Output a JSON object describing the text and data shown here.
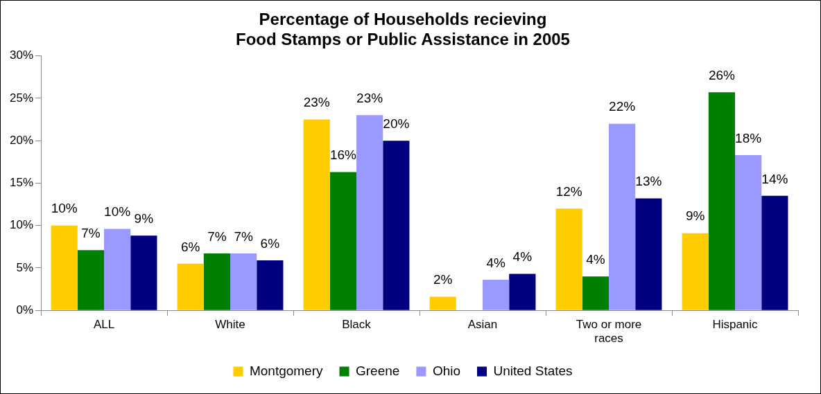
{
  "chart_data": {
    "type": "bar",
    "title": "Percentage of Households recieving\nFood Stamps or Public Assistance in 2005",
    "categories": [
      "ALL",
      "White",
      "Black",
      "Asian",
      "Two or more races",
      "Hispanic"
    ],
    "series": [
      {
        "name": "Montgomery",
        "color": "#ffcc00",
        "values": [
          10.0,
          5.5,
          22.5,
          1.6,
          12.0,
          9.1
        ],
        "value_labels": [
          "10%",
          "6%",
          "23%",
          "2%",
          "12%",
          "9%"
        ]
      },
      {
        "name": "Greene",
        "color": "#008000",
        "values": [
          7.1,
          6.7,
          16.3,
          null,
          4.0,
          25.7
        ],
        "value_labels": [
          "7%",
          "7%",
          "16%",
          null,
          "4%",
          "26%"
        ]
      },
      {
        "name": "Ohio",
        "color": "#9999ff",
        "values": [
          9.6,
          6.7,
          23.0,
          3.6,
          22.0,
          18.3
        ],
        "value_labels": [
          "10%",
          "7%",
          "23%",
          "4%",
          "22%",
          "18%"
        ]
      },
      {
        "name": "United States",
        "color": "#000080",
        "values": [
          8.8,
          5.9,
          20.0,
          4.3,
          13.2,
          13.5
        ],
        "value_labels": [
          "9%",
          "6%",
          "20%",
          "4%",
          "13%",
          "14%"
        ]
      }
    ],
    "ylim": [
      0,
      30
    ],
    "yticks": [
      {
        "value": 0,
        "label": "0%"
      },
      {
        "value": 5,
        "label": "5%"
      },
      {
        "value": 10,
        "label": "10%"
      },
      {
        "value": 15,
        "label": "15%"
      },
      {
        "value": 20,
        "label": "20%"
      },
      {
        "value": 25,
        "label": "25%"
      },
      {
        "value": 30,
        "label": "30%"
      }
    ],
    "grid": false,
    "legend": "bottom"
  }
}
